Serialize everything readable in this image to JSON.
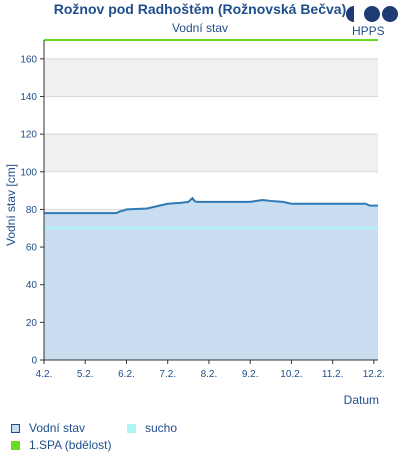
{
  "title": "Rožnov pod Radhoštěm (Rožnovská Bečva)",
  "subtitle": "Vodní stav",
  "logo_text": "HPPS",
  "chart_data": {
    "type": "line",
    "title": "Rožnov pod Radhoštěm (Rožnovská Bečva)",
    "subtitle": "Vodní stav",
    "xlabel": "Datum",
    "ylabel": "Vodní stav [cm]",
    "categories": [
      "4.2.",
      "5.2.",
      "6.2.",
      "7.2.",
      "8.2.",
      "9.2.",
      "10.2.",
      "11.2.",
      "12.2."
    ],
    "ylim": [
      0,
      170
    ],
    "yticks": [
      0,
      20,
      40,
      60,
      80,
      100,
      120,
      140,
      160
    ],
    "xlim": [
      0,
      8.1
    ],
    "grid": true,
    "legend_position": "bottom",
    "series": [
      {
        "name": "Vodní stav",
        "color": "#2f7ab5",
        "fill": "#c6dcf0",
        "x": [
          0,
          0.5,
          1,
          1.5,
          1.75,
          1.85,
          1.95,
          2.0,
          2.5,
          2.6,
          2.8,
          3.0,
          3.3,
          3.5,
          3.55,
          3.6,
          3.65,
          3.7,
          4.0,
          4.5,
          5.0,
          5.3,
          5.5,
          5.8,
          6.0,
          6.5,
          7.0,
          7.5,
          7.8,
          7.9,
          8.0,
          8.1
        ],
        "y": [
          78,
          78,
          78,
          78,
          78,
          79,
          79.5,
          80,
          80.5,
          81,
          82,
          83,
          83.5,
          84,
          85,
          86,
          84.5,
          84,
          84,
          84,
          84,
          85,
          84.5,
          84,
          83,
          83,
          83,
          83,
          83,
          82,
          82,
          82
        ]
      },
      {
        "name": "sucho",
        "color": "#aaf5f5",
        "x": [
          0,
          8.1
        ],
        "y": [
          70,
          70
        ]
      },
      {
        "name": "1.SPA (bdělost)",
        "color": "#66dd22",
        "x": [
          0,
          8.1
        ],
        "y": [
          170,
          170
        ]
      }
    ]
  },
  "legend": [
    {
      "label": "Vodní stav",
      "color": "#c6dcf0",
      "border": "#1f4e8c"
    },
    {
      "label": "sucho",
      "color": "#aaf5f5"
    },
    {
      "label": "1.SPA (bdělost)",
      "color": "#66dd22"
    }
  ]
}
